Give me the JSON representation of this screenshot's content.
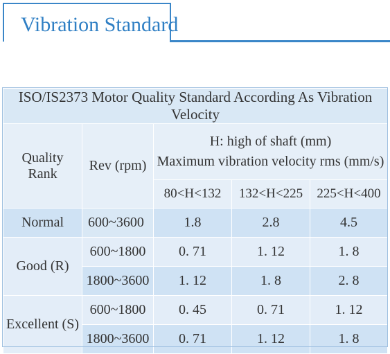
{
  "header": {
    "title": "Vibration Standard"
  },
  "table": {
    "title": "ISO/IS2373 Motor Quality Standard According As Vibration Velocity",
    "col_quality": "Quality Rank",
    "col_quality_line1": "Quality",
    "col_quality_line2": "Rank",
    "col_rev": "Rev (rpm)",
    "col_velocity_line1": "H: high of shaft (mm)",
    "col_velocity_line2": "Maximum vibration velocity rms (mm/s)",
    "sub_headers": [
      "80<H<132",
      "132<H<225",
      "225<H<400"
    ],
    "rows": {
      "normal": {
        "rank": "Normal",
        "rev": "600~3600",
        "v": [
          "1.8",
          "2.8",
          "4.5"
        ]
      },
      "good": {
        "rank": "Good (R)",
        "r1": {
          "rev": "600~1800",
          "v": [
            "0. 71",
            "1. 12",
            "1. 8"
          ]
        },
        "r2": {
          "rev": "1800~3600",
          "v": [
            "1. 12",
            "1. 8",
            "2. 8"
          ]
        }
      },
      "excellent": {
        "rank": "Excellent (S)",
        "r1": {
          "rev": "600~1800",
          "v": [
            "0. 45",
            "0. 71",
            "1. 12"
          ]
        },
        "r2": {
          "rev": "1800~3600",
          "v": [
            "0. 71",
            "1. 12",
            "1. 8"
          ]
        }
      }
    }
  }
}
